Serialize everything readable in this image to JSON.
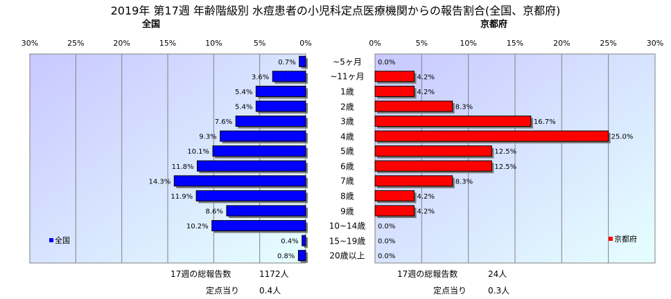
{
  "title": "2019年 第17週 年齢階級別 水痘患者の小児科定点医療機関からの報告割合(全国、京都府)",
  "chart_data": [
    {
      "type": "bar",
      "name": "全国",
      "title": "全国",
      "orientation": "horizontal",
      "direction": "right-to-left",
      "xlim": [
        0,
        30
      ],
      "xticks": [
        "30%",
        "25%",
        "20%",
        "15%",
        "10%",
        "5%",
        "0%"
      ],
      "categories": [
        "~5ヶ月",
        "~11ヶ月",
        "1歳",
        "2歳",
        "3歳",
        "4歳",
        "5歳",
        "6歳",
        "7歳",
        "8歳",
        "9歳",
        "10~14歳",
        "15~19歳",
        "20歳以上"
      ],
      "values": [
        0.7,
        3.6,
        5.4,
        5.4,
        7.6,
        9.3,
        10.1,
        11.8,
        14.3,
        11.9,
        8.6,
        10.2,
        0.4,
        0.8
      ],
      "value_labels": [
        "0.7%",
        "3.6%",
        "5.4%",
        "5.4%",
        "7.6%",
        "9.3%",
        "10.1%",
        "11.8%",
        "14.3%",
        "11.9%",
        "8.6%",
        "10.2%",
        "0.4%",
        "0.8%"
      ],
      "legend": "全国",
      "legend_position": "bottom-left",
      "bar_color": "#0000ff",
      "plot_background": "lavender-to-light-cyan gradient",
      "grid": true
    },
    {
      "type": "bar",
      "name": "京都府",
      "title": "京都府",
      "orientation": "horizontal",
      "direction": "left-to-right",
      "xlim": [
        0,
        30
      ],
      "xticks": [
        "0%",
        "5%",
        "10%",
        "15%",
        "20%",
        "25%",
        "30%"
      ],
      "categories": [
        "~5ヶ月",
        "~11ヶ月",
        "1歳",
        "2歳",
        "3歳",
        "4歳",
        "5歳",
        "6歳",
        "7歳",
        "8歳",
        "9歳",
        "10~14歳",
        "15~19歳",
        "20歳以上"
      ],
      "values": [
        0.0,
        4.2,
        4.2,
        8.3,
        16.7,
        25.0,
        12.5,
        12.5,
        8.3,
        4.2,
        4.2,
        0.0,
        0.0,
        0.0
      ],
      "value_labels": [
        "0.0%",
        "4.2%",
        "4.2%",
        "8.3%",
        "16.7%",
        "25.0%",
        "12.5%",
        "12.5%",
        "8.3%",
        "4.2%",
        "4.2%",
        "0.0%",
        "0.0%",
        "0.0%"
      ],
      "legend": "京都府",
      "legend_position": "bottom-right",
      "bar_color": "#ff0000",
      "plot_background": "lavender-to-light-cyan gradient",
      "grid": true
    }
  ],
  "footer": {
    "left_total_label": "17週の総報告数",
    "left_total_value": "1172人",
    "left_per_label": "定点当り",
    "left_per_value": "0.4人",
    "right_total_label": "17週の総報告数",
    "right_total_value": "24人",
    "right_per_label": "定点当り",
    "right_per_value": "0.3人"
  },
  "colors": {
    "left_bar": "#0000ff",
    "right_bar": "#ff0000",
    "bar_border": "#000000",
    "grid": "#808080"
  }
}
